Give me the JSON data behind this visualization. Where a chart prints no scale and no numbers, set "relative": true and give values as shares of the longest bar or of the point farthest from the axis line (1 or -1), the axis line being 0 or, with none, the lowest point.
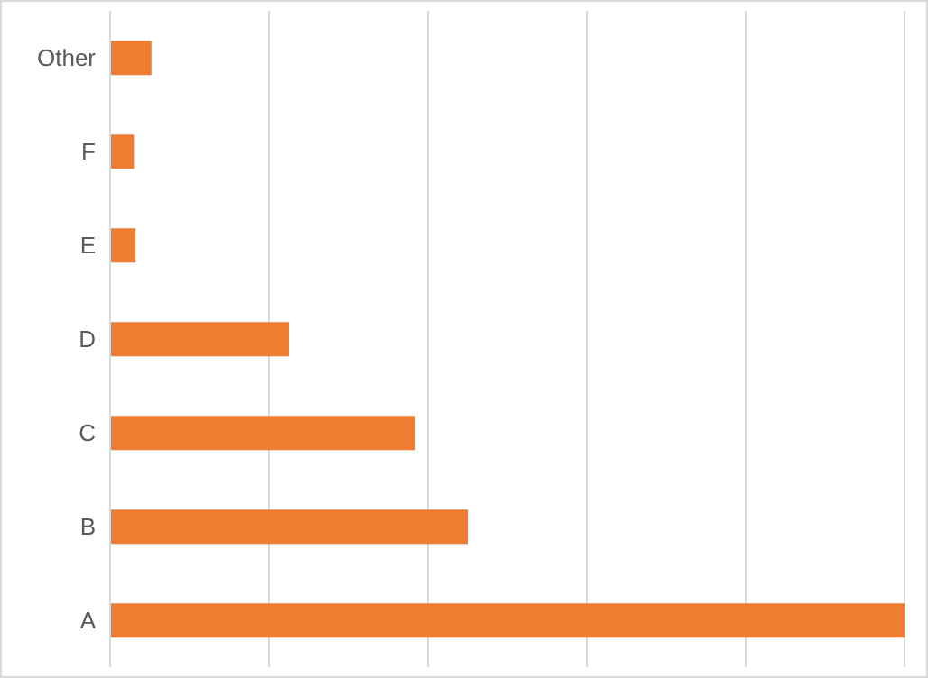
{
  "chart_data": {
    "type": "bar",
    "orientation": "horizontal",
    "relative": true,
    "categories": [
      "Other",
      "F",
      "E",
      "D",
      "C",
      "B",
      "A"
    ],
    "values": [
      0.052,
      0.03,
      0.032,
      0.225,
      0.384,
      0.45,
      1
    ],
    "color": "#ed7d31",
    "grid": "x"
  }
}
